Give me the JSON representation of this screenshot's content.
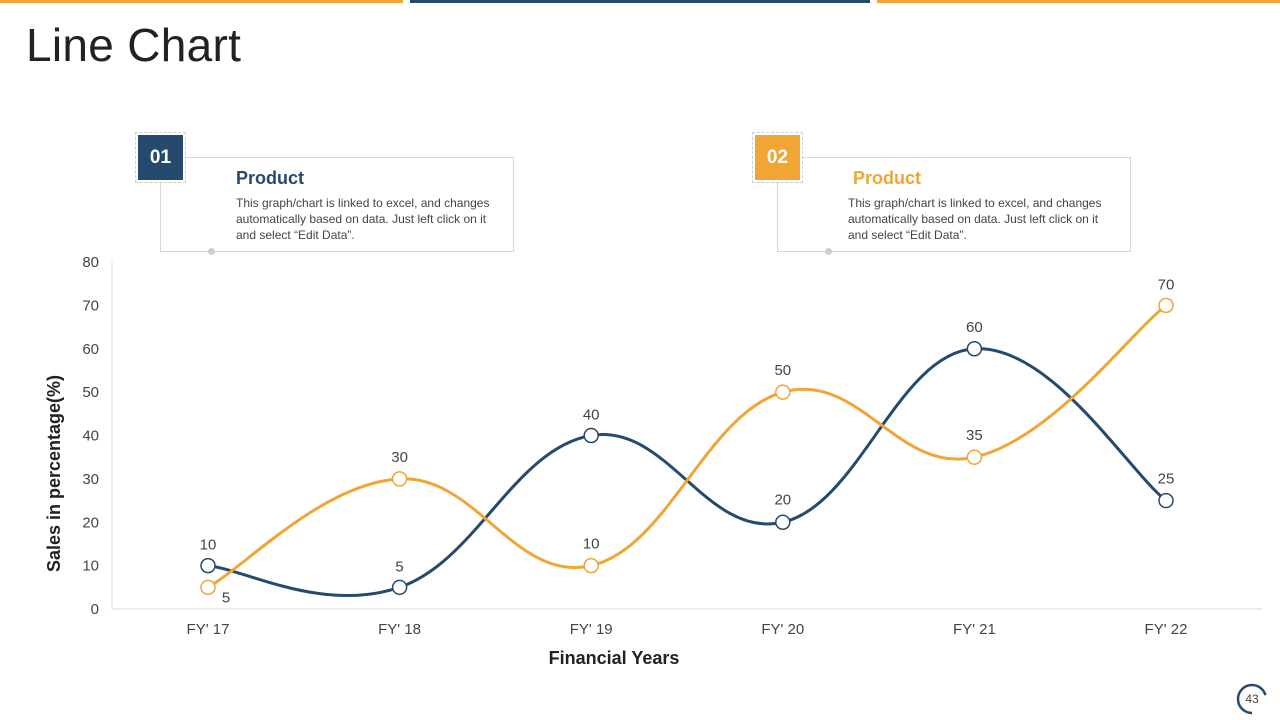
{
  "page": {
    "title": "Line Chart",
    "page_number": "43",
    "colors": {
      "navy": "#264a6e",
      "orange": "#f0a535",
      "axis_text": "#444444"
    }
  },
  "legend": [
    {
      "number": "01",
      "title": "Product",
      "text": "This graph/chart is linked to excel, and changes automatically based on data. Just left click on it and select “Edit Data”.",
      "color": "#264a6e"
    },
    {
      "number": "02",
      "title": "Product",
      "text": "This graph/chart is linked to excel, and changes automatically based on data. Just left click on it and select “Edit Data”.",
      "color": "#f0a535"
    }
  ],
  "chart_data": {
    "type": "line",
    "categories": [
      "FY' 17",
      "FY' 18",
      "FY' 19",
      "FY' 20",
      "FY' 21",
      "FY' 22"
    ],
    "series": [
      {
        "values": [
          10,
          5,
          40,
          20,
          60,
          25
        ],
        "color": "#264a6e"
      },
      {
        "values": [
          5,
          30,
          10,
          50,
          35,
          70
        ],
        "color": "#f0a535"
      }
    ],
    "xlabel": "Financial Years",
    "ylabel": "Sales in percentage(%)",
    "ylim": [
      0,
      80
    ],
    "yticks": [
      0,
      10,
      20,
      30,
      40,
      50,
      60,
      70,
      80
    ],
    "smooth": true,
    "grid": false,
    "data_labels": true
  }
}
